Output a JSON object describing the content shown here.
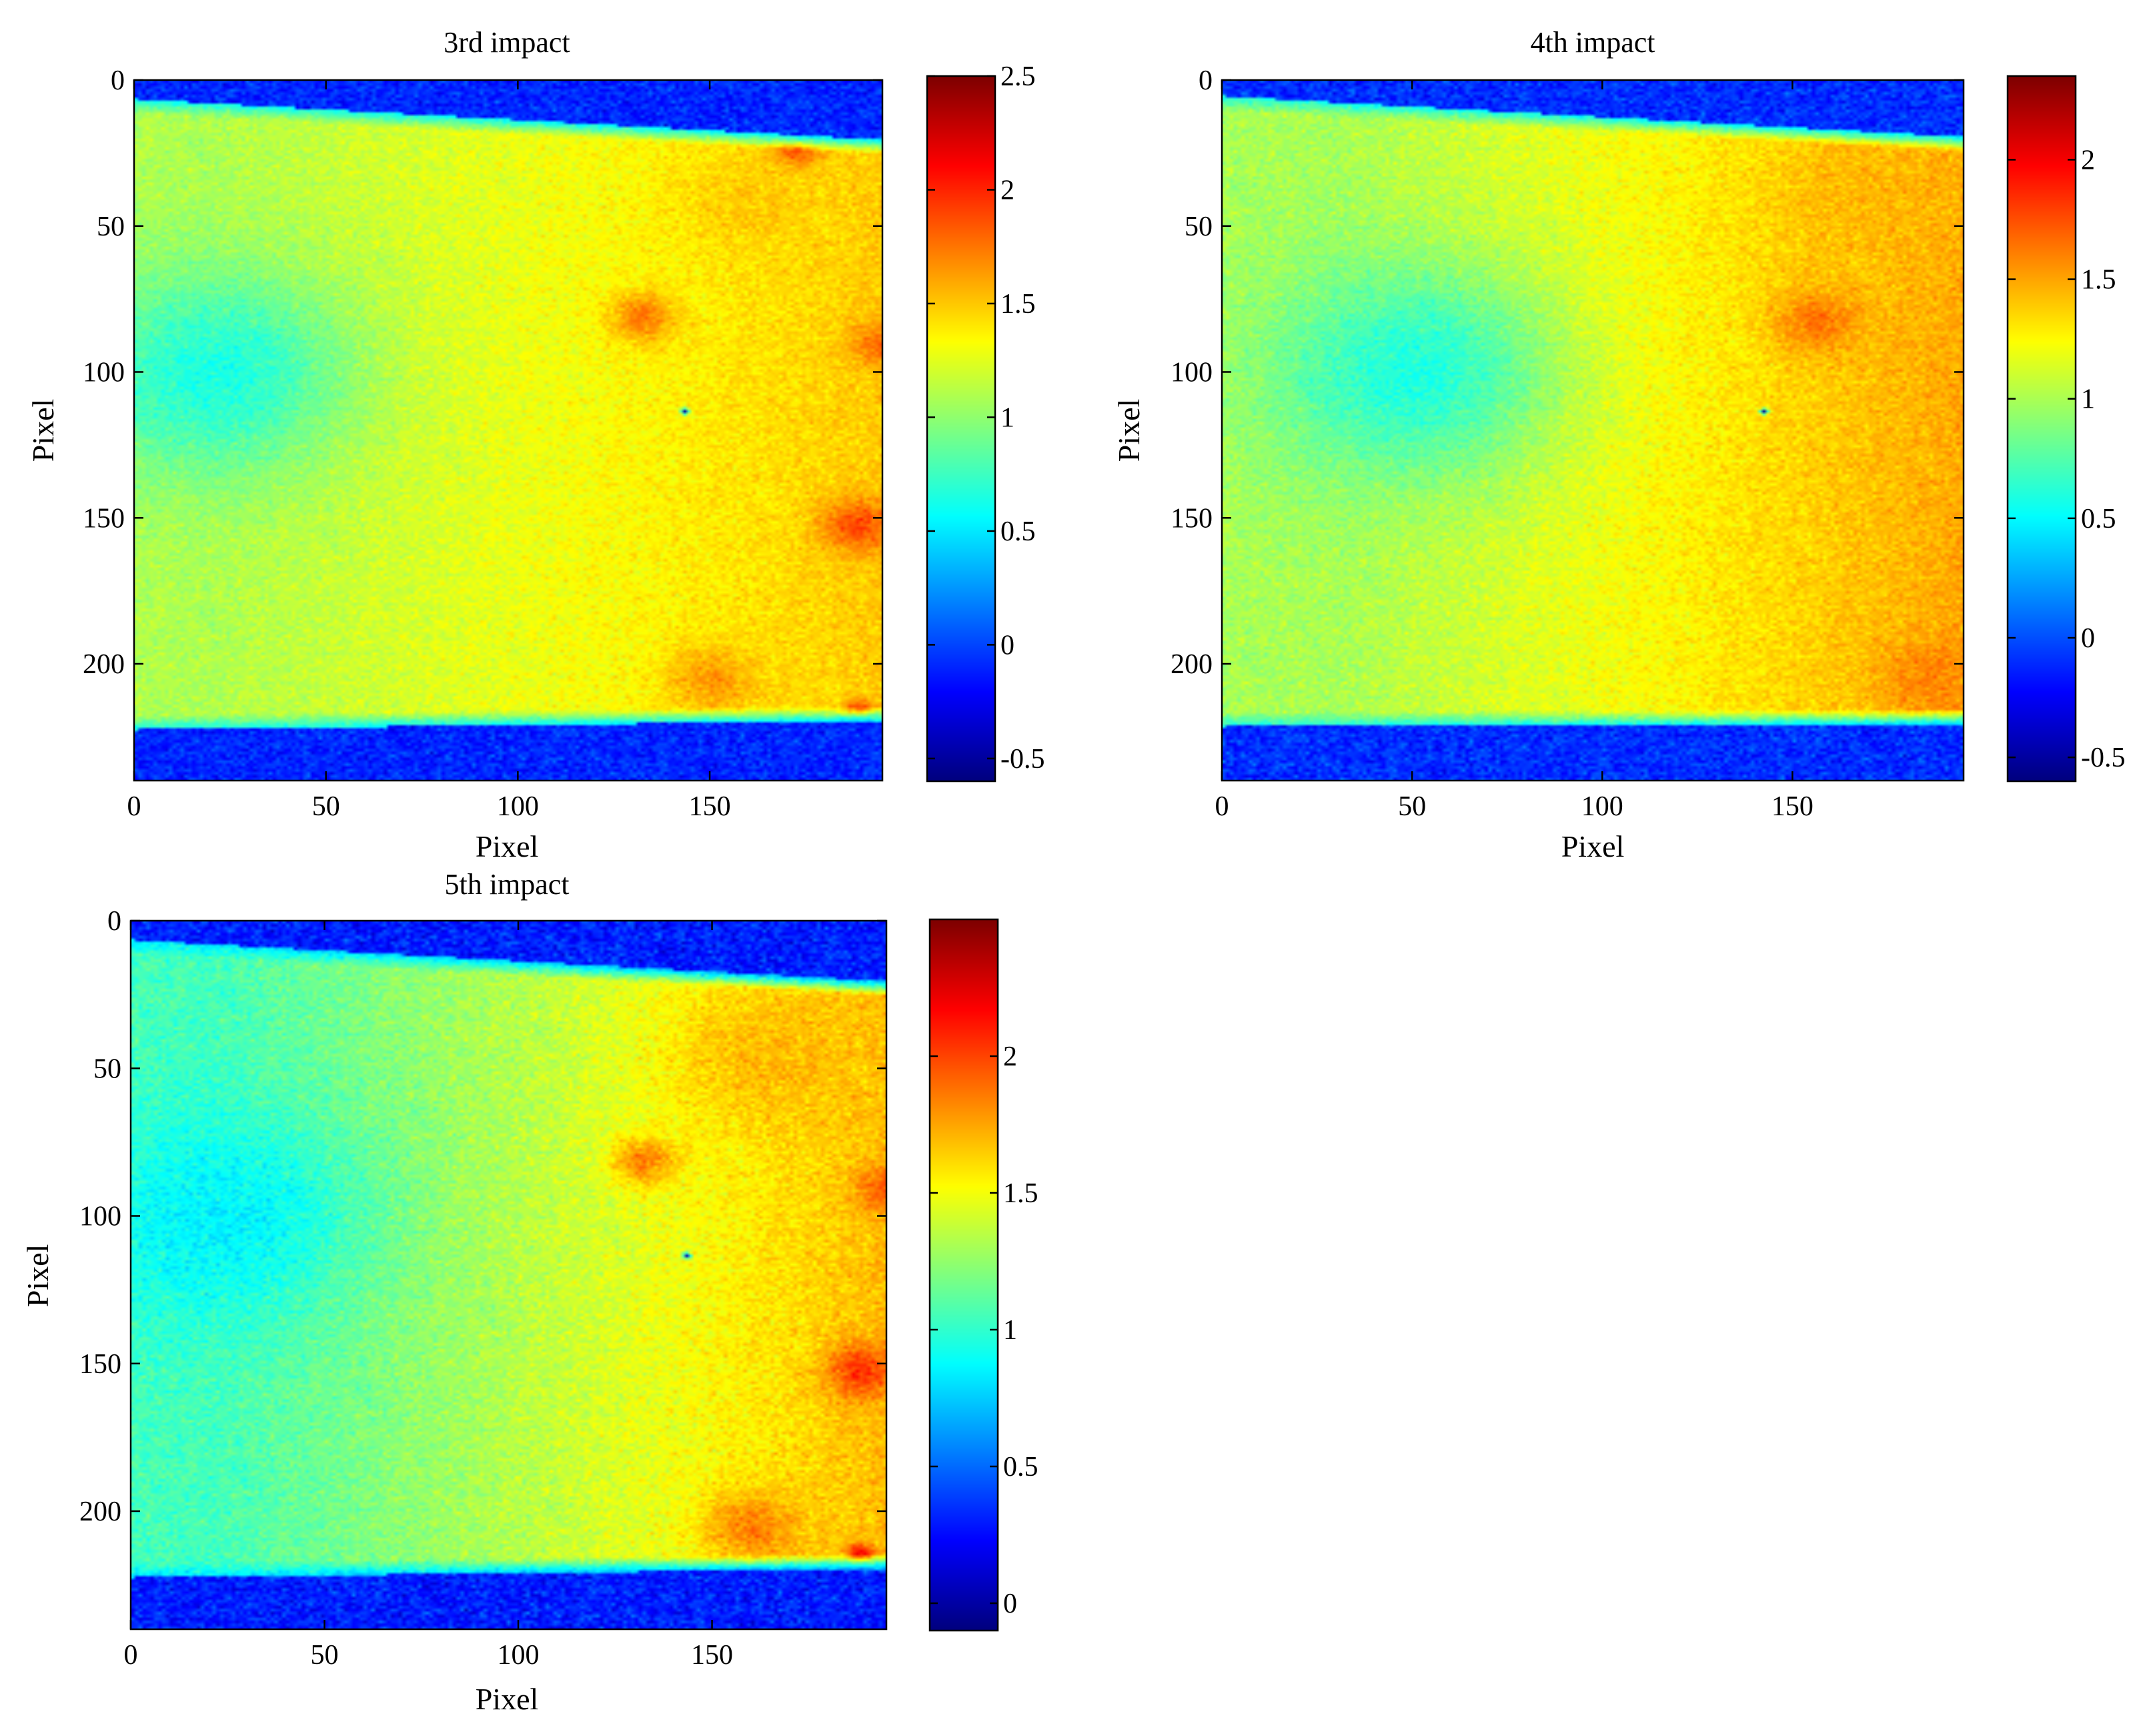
{
  "chart_data": [
    {
      "type": "heatmap",
      "title": "3rd impact",
      "xlabel": "Pixel",
      "ylabel": "Pixel",
      "xlim": [
        0,
        195
      ],
      "ylim": [
        0,
        240
      ],
      "y_reversed": true,
      "xticks": [
        0,
        50,
        100,
        150
      ],
      "yticks": [
        0,
        50,
        100,
        150,
        200
      ],
      "colormap": "jet",
      "clim": [
        -0.6,
        2.5
      ],
      "colorbar_ticks": [
        -0.5,
        0,
        0.5,
        1,
        1.5,
        2,
        2.5
      ],
      "band_top_edge": [
        [
          0,
          7
        ],
        [
          195,
          21
        ]
      ],
      "band_bottom_edge": [
        [
          0,
          221
        ],
        [
          195,
          218
        ]
      ],
      "background_value": -0.1,
      "body_value": 1.25,
      "features": [
        {
          "x": 20,
          "y": 100,
          "value": 0.65,
          "radius": 38
        },
        {
          "x": 132,
          "y": 81,
          "value": 1.75,
          "radius": 9
        },
        {
          "x": 172,
          "y": 24,
          "value": 1.95,
          "radius": 6
        },
        {
          "x": 188,
          "y": 152,
          "value": 1.9,
          "radius": 10
        },
        {
          "x": 194,
          "y": 90,
          "value": 1.8,
          "radius": 8
        },
        {
          "x": 150,
          "y": 205,
          "value": 1.65,
          "radius": 12
        },
        {
          "x": 188,
          "y": 216,
          "value": 2.1,
          "radius": 4
        },
        {
          "x": 143,
          "y": 113,
          "value": -0.5,
          "radius": 1
        },
        {
          "x": 160,
          "y": 40,
          "value": 1.5,
          "radius": 18
        }
      ],
      "gradient": {
        "x0": 20,
        "v0": -0.15,
        "x1": 195,
        "v1": 0.25
      }
    },
    {
      "type": "heatmap",
      "title": "4th impact",
      "xlabel": "Pixel",
      "ylabel": "Pixel",
      "xlim": [
        0,
        195
      ],
      "ylim": [
        0,
        240
      ],
      "y_reversed": true,
      "xticks": [
        0,
        50,
        100,
        150
      ],
      "yticks": [
        0,
        50,
        100,
        150,
        200
      ],
      "colormap": "jet",
      "clim": [
        -0.6,
        2.35
      ],
      "colorbar_ticks": [
        -0.5,
        0,
        0.5,
        1,
        1.5,
        2
      ],
      "band_top_edge": [
        [
          0,
          6
        ],
        [
          195,
          20
        ]
      ],
      "band_bottom_edge": [
        [
          0,
          220
        ],
        [
          195,
          219
        ]
      ],
      "background_value": -0.1,
      "body_value": 1.2,
      "features": [
        {
          "x": 50,
          "y": 100,
          "value": 0.6,
          "radius": 40
        },
        {
          "x": 156,
          "y": 82,
          "value": 1.65,
          "radius": 12
        },
        {
          "x": 186,
          "y": 205,
          "value": 1.6,
          "radius": 14
        },
        {
          "x": 170,
          "y": 40,
          "value": 1.45,
          "radius": 25
        },
        {
          "x": 142,
          "y": 113,
          "value": -0.5,
          "radius": 1
        }
      ],
      "gradient": {
        "x0": 30,
        "v0": -0.2,
        "x1": 195,
        "v1": 0.3
      }
    },
    {
      "type": "heatmap",
      "title": "5th impact",
      "xlabel": "Pixel",
      "ylabel": "Pixel",
      "xlim": [
        0,
        195
      ],
      "ylim": [
        0,
        240
      ],
      "y_reversed": true,
      "xticks": [
        0,
        50,
        100,
        150
      ],
      "yticks": [
        0,
        50,
        100,
        150,
        200
      ],
      "colormap": "jet",
      "clim": [
        -0.1,
        2.5
      ],
      "colorbar_ticks": [
        0,
        0.5,
        1,
        1.5,
        2
      ],
      "band_top_edge": [
        [
          0,
          7
        ],
        [
          195,
          21
        ]
      ],
      "band_bottom_edge": [
        [
          0,
          221
        ],
        [
          195,
          218
        ]
      ],
      "background_value": 0.3,
      "body_value": 1.4,
      "features": [
        {
          "x": 22,
          "y": 100,
          "value": 0.85,
          "radius": 38
        },
        {
          "x": 132,
          "y": 81,
          "value": 1.85,
          "radius": 9
        },
        {
          "x": 188,
          "y": 152,
          "value": 2.05,
          "radius": 10
        },
        {
          "x": 194,
          "y": 90,
          "value": 1.95,
          "radius": 8
        },
        {
          "x": 160,
          "y": 205,
          "value": 1.85,
          "radius": 13
        },
        {
          "x": 188,
          "y": 214,
          "value": 2.2,
          "radius": 4
        },
        {
          "x": 143,
          "y": 113,
          "value": 0.0,
          "radius": 1
        },
        {
          "x": 165,
          "y": 45,
          "value": 1.7,
          "radius": 28
        }
      ],
      "gradient": {
        "x0": 20,
        "v0": -0.35,
        "x1": 195,
        "v1": 0.3
      }
    }
  ]
}
